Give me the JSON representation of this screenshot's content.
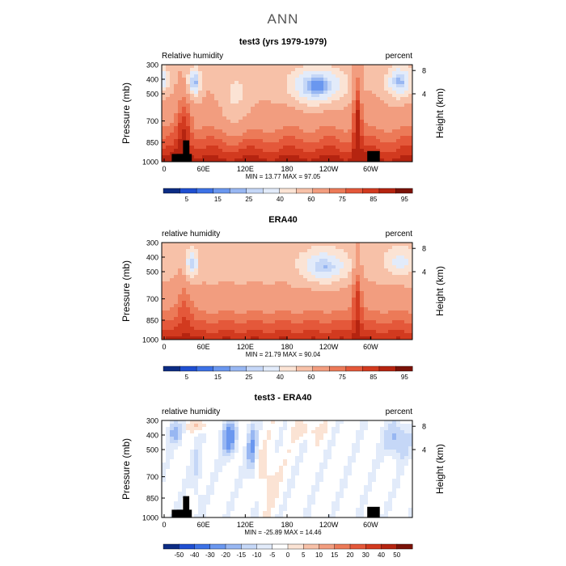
{
  "page_title": "ANN",
  "chart_data": [
    {
      "type": "heatmap",
      "title": "test3 (yrs 1979-1979)",
      "left_label": "Relative humidity",
      "right_label": "percent",
      "ylabel": "Pressure (mb)",
      "ylabel_right": "Height (km)",
      "x_ticks": [
        "0",
        "60E",
        "120E",
        "180",
        "120W",
        "60W"
      ],
      "y_ticks": [
        "300",
        "400",
        "500",
        "700",
        "850",
        "1000"
      ],
      "y_ticks_right": [
        "8",
        "4"
      ],
      "stats": "MIN =  13.77   MAX =  97.05",
      "colorbar_labels": [
        "5",
        "15",
        "25",
        "40",
        "60",
        "75",
        "85",
        "95"
      ],
      "colorbar_colors": [
        "#0c2c84",
        "#1f4fd1",
        "#3d72e6",
        "#6a97ef",
        "#98b7f2",
        "#c5d7f7",
        "#e2ebfa",
        "#fbe3d4",
        "#f7c1a8",
        "#f29d7f",
        "#ec7a58",
        "#e4583a",
        "#d23a1f",
        "#b52410",
        "#7a1208"
      ],
      "ylim": [
        1000,
        300
      ],
      "xlim": [
        0,
        360
      ],
      "summary_values": {
        "min": 13.77,
        "max": 97.05
      }
    },
    {
      "type": "heatmap",
      "title": "ERA40",
      "left_label": "relative humidity",
      "right_label": "percent",
      "ylabel": "Pressure (mb)",
      "ylabel_right": "Height (km)",
      "x_ticks": [
        "0",
        "60E",
        "120E",
        "180",
        "120W",
        "60W"
      ],
      "y_ticks": [
        "300",
        "400",
        "500",
        "700",
        "850",
        "1000"
      ],
      "y_ticks_right": [
        "8",
        "4"
      ],
      "stats": "MIN =  21.79   MAX =  90.04",
      "colorbar_labels": [
        "5",
        "15",
        "25",
        "40",
        "60",
        "75",
        "85",
        "95"
      ],
      "colorbar_colors": [
        "#0c2c84",
        "#1f4fd1",
        "#3d72e6",
        "#6a97ef",
        "#98b7f2",
        "#c5d7f7",
        "#e2ebfa",
        "#fbe3d4",
        "#f7c1a8",
        "#f29d7f",
        "#ec7a58",
        "#e4583a",
        "#d23a1f",
        "#b52410",
        "#7a1208"
      ],
      "ylim": [
        1000,
        300
      ],
      "xlim": [
        0,
        360
      ],
      "summary_values": {
        "min": 21.79,
        "max": 90.04
      }
    },
    {
      "type": "heatmap",
      "title": "test3 - ERA40",
      "left_label": "relative humidity",
      "right_label": "percent",
      "ylabel": "Pressure (mb)",
      "ylabel_right": "Height (km)",
      "x_ticks": [
        "0",
        "60E",
        "120E",
        "180",
        "120W",
        "60W"
      ],
      "y_ticks": [
        "300",
        "400",
        "500",
        "700",
        "850",
        "1000"
      ],
      "y_ticks_right": [
        "8",
        "4"
      ],
      "stats": "MIN = -25.89   MAX =  14.46",
      "colorbar_labels": [
        "-50",
        "-40",
        "-30",
        "-20",
        "-15",
        "-10",
        "-5",
        "0",
        "5",
        "10",
        "15",
        "20",
        "30",
        "40",
        "50"
      ],
      "colorbar_colors": [
        "#0c2c84",
        "#1f4fd1",
        "#3d72e6",
        "#6a97ef",
        "#98b7f2",
        "#c5d7f7",
        "#e2ebfa",
        "#ffffff",
        "#fbe3d4",
        "#f7c1a8",
        "#f29d7f",
        "#ec7a58",
        "#e4583a",
        "#d23a1f",
        "#b52410",
        "#7a1208"
      ],
      "ylim": [
        1000,
        300
      ],
      "xlim": [
        0,
        360
      ],
      "summary_values": {
        "min": -25.89,
        "max": 14.46
      }
    }
  ]
}
